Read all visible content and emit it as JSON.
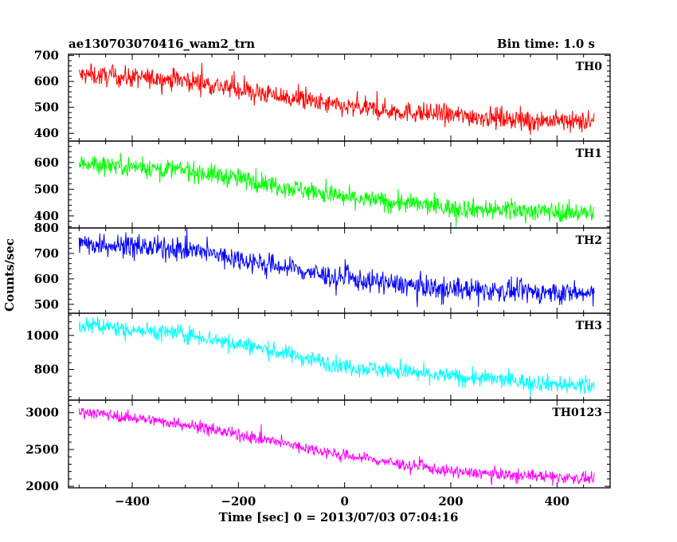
{
  "header": {
    "title": "ae130703070416_wam2_trn",
    "bin_time": "Bin time: 1.0 s"
  },
  "chart_data": {
    "type": "line",
    "title": "ae130703070416_wam2_trn",
    "subtitle": "Bin time: 1.0 s",
    "xlabel": "Time [sec] 0 = 2013/07/03 07:04:16",
    "ylabel": "Counts/sec",
    "xlim": [
      -520,
      500
    ],
    "x_ticks": [
      -400,
      -200,
      0,
      200,
      400
    ],
    "x_range_data": [
      -500,
      470
    ],
    "grid": false,
    "panels": [
      {
        "name": "TH0",
        "color": "#ff0000",
        "ylim": [
          370,
          705
        ],
        "y_ticks": [
          400,
          500,
          600,
          700
        ],
        "trend": [
          [
            -500,
            625
          ],
          [
            -300,
            605
          ],
          [
            -200,
            570
          ],
          [
            0,
            500
          ],
          [
            200,
            470
          ],
          [
            470,
            440
          ]
        ],
        "noise": 35
      },
      {
        "name": "TH1",
        "color": "#00ff00",
        "ylim": [
          355,
          680
        ],
        "y_ticks": [
          400,
          500,
          600
        ],
        "trend": [
          [
            -500,
            600
          ],
          [
            -300,
            570
          ],
          [
            -200,
            540
          ],
          [
            0,
            470
          ],
          [
            200,
            430
          ],
          [
            470,
            410
          ]
        ],
        "noise": 33
      },
      {
        "name": "TH2",
        "color": "#0000ff",
        "ylim": [
          465,
          800
        ],
        "y_ticks": [
          500,
          600,
          700,
          800
        ],
        "trend": [
          [
            -500,
            740
          ],
          [
            -300,
            715
          ],
          [
            -200,
            680
          ],
          [
            0,
            600
          ],
          [
            200,
            560
          ],
          [
            470,
            540
          ]
        ],
        "noise": 38
      },
      {
        "name": "TH3",
        "color": "#00ffff",
        "ylim": [
          620,
          1130
        ],
        "y_ticks": [
          800,
          1000
        ],
        "trend": [
          [
            -500,
            1060
          ],
          [
            -300,
            1010
          ],
          [
            -200,
            950
          ],
          [
            0,
            820
          ],
          [
            200,
            760
          ],
          [
            470,
            700
          ]
        ],
        "noise": 45
      },
      {
        "name": "TH0123",
        "color": "#ff00ff",
        "ylim": [
          1980,
          3170
        ],
        "y_ticks": [
          2000,
          2500,
          3000
        ],
        "trend": [
          [
            -500,
            3020
          ],
          [
            -300,
            2840
          ],
          [
            -200,
            2700
          ],
          [
            0,
            2420
          ],
          [
            200,
            2200
          ],
          [
            470,
            2100
          ]
        ],
        "noise": 70
      }
    ]
  }
}
